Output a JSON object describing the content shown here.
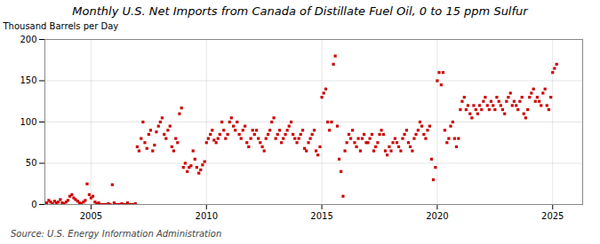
{
  "chart_data": {
    "type": "scatter",
    "title": "Monthly U.S. Net Imports from Canada of Distillate Fuel Oil, 0 to 15 ppm Sulfur",
    "ylabel": "Thousand Barrels per Day",
    "source": "Source: U.S. Energy Information Administration",
    "color": "#cc0000",
    "marker": "square",
    "grid": true,
    "xlim": [
      2003.0,
      2026.3
    ],
    "xticks": [
      2005,
      2010,
      2015,
      2020,
      2025
    ],
    "ylim": [
      0,
      200
    ],
    "yticks": [
      0,
      50,
      100,
      150,
      200
    ],
    "x": [
      2003.08,
      2003.17,
      2003.25,
      2003.33,
      2003.42,
      2003.5,
      2003.58,
      2003.67,
      2003.75,
      2003.83,
      2003.92,
      2004.0,
      2004.08,
      2004.17,
      2004.25,
      2004.33,
      2004.42,
      2004.5,
      2004.58,
      2004.67,
      2004.75,
      2004.83,
      2004.92,
      2005.0,
      2005.08,
      2005.17,
      2005.25,
      2005.33,
      2005.42,
      2005.5,
      2005.58,
      2005.67,
      2005.75,
      2005.83,
      2005.92,
      2006.0,
      2006.08,
      2006.17,
      2006.25,
      2006.33,
      2006.42,
      2006.5,
      2006.58,
      2006.67,
      2006.75,
      2006.83,
      2006.92,
      2007.0,
      2007.08,
      2007.17,
      2007.25,
      2007.33,
      2007.42,
      2007.5,
      2007.58,
      2007.67,
      2007.75,
      2007.83,
      2007.92,
      2008.0,
      2008.08,
      2008.17,
      2008.25,
      2008.33,
      2008.42,
      2008.5,
      2008.58,
      2008.67,
      2008.75,
      2008.83,
      2008.92,
      2009.0,
      2009.08,
      2009.17,
      2009.25,
      2009.33,
      2009.42,
      2009.5,
      2009.58,
      2009.67,
      2009.75,
      2009.83,
      2009.92,
      2010.0,
      2010.08,
      2010.17,
      2010.25,
      2010.33,
      2010.42,
      2010.5,
      2010.58,
      2010.67,
      2010.75,
      2010.83,
      2010.92,
      2011.0,
      2011.08,
      2011.17,
      2011.25,
      2011.33,
      2011.42,
      2011.5,
      2011.58,
      2011.67,
      2011.75,
      2011.83,
      2011.92,
      2012.0,
      2012.08,
      2012.17,
      2012.25,
      2012.33,
      2012.42,
      2012.5,
      2012.58,
      2012.67,
      2012.75,
      2012.83,
      2012.92,
      2013.0,
      2013.08,
      2013.17,
      2013.25,
      2013.33,
      2013.42,
      2013.5,
      2013.58,
      2013.67,
      2013.75,
      2013.83,
      2013.92,
      2014.0,
      2014.08,
      2014.17,
      2014.25,
      2014.33,
      2014.42,
      2014.5,
      2014.58,
      2014.67,
      2014.75,
      2014.83,
      2014.92,
      2015.0,
      2015.08,
      2015.17,
      2015.25,
      2015.33,
      2015.42,
      2015.5,
      2015.58,
      2015.67,
      2015.75,
      2015.83,
      2015.92,
      2016.0,
      2016.08,
      2016.17,
      2016.25,
      2016.33,
      2016.42,
      2016.5,
      2016.58,
      2016.67,
      2016.75,
      2016.83,
      2016.92,
      2017.0,
      2017.08,
      2017.17,
      2017.25,
      2017.33,
      2017.42,
      2017.5,
      2017.58,
      2017.67,
      2017.75,
      2017.83,
      2017.92,
      2018.0,
      2018.08,
      2018.17,
      2018.25,
      2018.33,
      2018.42,
      2018.5,
      2018.58,
      2018.67,
      2018.75,
      2018.83,
      2018.92,
      2019.0,
      2019.08,
      2019.17,
      2019.25,
      2019.33,
      2019.42,
      2019.5,
      2019.58,
      2019.67,
      2019.75,
      2019.83,
      2019.92,
      2020.0,
      2020.08,
      2020.17,
      2020.25,
      2020.33,
      2020.42,
      2020.5,
      2020.58,
      2020.67,
      2020.75,
      2020.83,
      2020.92,
      2021.0,
      2021.08,
      2021.17,
      2021.25,
      2021.33,
      2021.42,
      2021.5,
      2021.58,
      2021.67,
      2021.75,
      2021.83,
      2021.92,
      2022.0,
      2022.08,
      2022.17,
      2022.25,
      2022.33,
      2022.42,
      2022.5,
      2022.58,
      2022.67,
      2022.75,
      2022.83,
      2022.92,
      2023.0,
      2023.08,
      2023.17,
      2023.25,
      2023.33,
      2023.42,
      2023.5,
      2023.58,
      2023.67,
      2023.75,
      2023.83,
      2023.92,
      2024.0,
      2024.08,
      2024.17,
      2024.25,
      2024.33,
      2024.42,
      2024.5,
      2024.58,
      2024.67,
      2024.75,
      2024.83,
      2024.92,
      2025.0,
      2025.08,
      2025.17
    ],
    "values": [
      2,
      5,
      3,
      1,
      4,
      2,
      3,
      6,
      2,
      1,
      3,
      5,
      10,
      12,
      8,
      6,
      4,
      2,
      1,
      3,
      5,
      25,
      12,
      8,
      10,
      3,
      1,
      2,
      0,
      0,
      0,
      0,
      1,
      0,
      24,
      2,
      0,
      0,
      0,
      1,
      0,
      0,
      2,
      0,
      0,
      0,
      1,
      70,
      65,
      80,
      100,
      75,
      68,
      85,
      90,
      65,
      72,
      88,
      95,
      100,
      105,
      85,
      80,
      90,
      95,
      70,
      65,
      80,
      75,
      110,
      117,
      45,
      50,
      40,
      45,
      47,
      65,
      55,
      45,
      38,
      42,
      48,
      52,
      75,
      80,
      85,
      90,
      78,
      75,
      80,
      85,
      100,
      90,
      80,
      85,
      100,
      105,
      95,
      90,
      100,
      85,
      80,
      90,
      95,
      75,
      70,
      80,
      90,
      85,
      90,
      80,
      75,
      70,
      65,
      80,
      85,
      90,
      100,
      105,
      80,
      85,
      90,
      75,
      80,
      85,
      90,
      95,
      100,
      85,
      80,
      75,
      80,
      85,
      90,
      68,
      65,
      75,
      80,
      85,
      90,
      65,
      60,
      70,
      130,
      135,
      140,
      100,
      90,
      100,
      170,
      180,
      95,
      55,
      40,
      10,
      65,
      75,
      85,
      80,
      90,
      75,
      70,
      80,
      65,
      80,
      85,
      75,
      75,
      80,
      85,
      65,
      70,
      75,
      85,
      90,
      85,
      65,
      60,
      70,
      65,
      75,
      80,
      75,
      70,
      65,
      80,
      85,
      90,
      75,
      70,
      65,
      80,
      85,
      90,
      100,
      95,
      85,
      80,
      90,
      95,
      55,
      30,
      45,
      150,
      160,
      145,
      160,
      90,
      75,
      80,
      95,
      100,
      80,
      70,
      80,
      115,
      125,
      130,
      115,
      120,
      110,
      105,
      120,
      115,
      110,
      120,
      115,
      125,
      130,
      120,
      115,
      125,
      120,
      115,
      130,
      125,
      120,
      115,
      110,
      125,
      130,
      135,
      120,
      125,
      120,
      115,
      125,
      130,
      110,
      105,
      115,
      130,
      135,
      140,
      125,
      130,
      125,
      120,
      135,
      140,
      120,
      115,
      130,
      160,
      165,
      170
    ]
  }
}
